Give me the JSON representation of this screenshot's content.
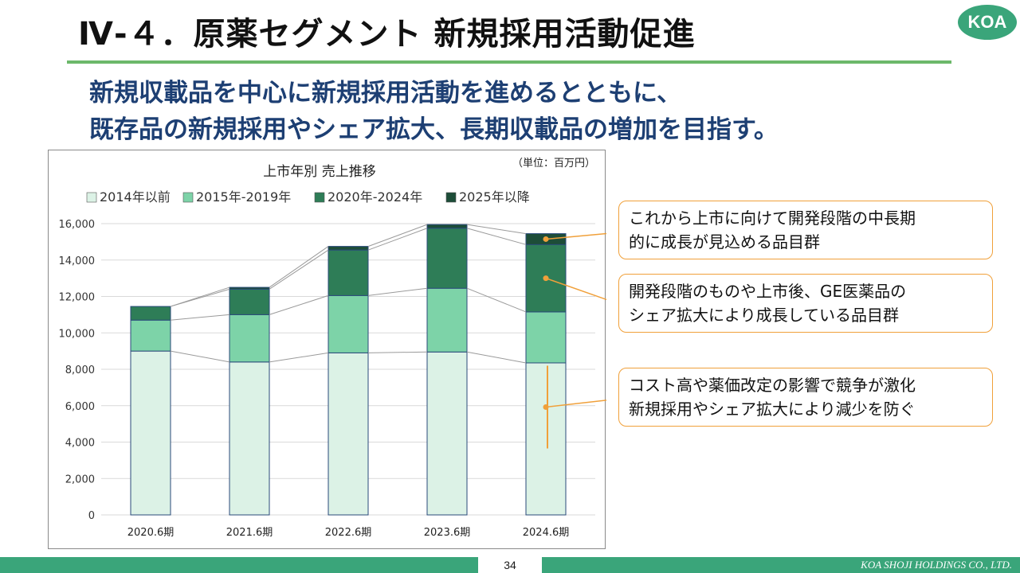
{
  "slide": {
    "title": "Ⅳ-４．原薬セグメント 新規採用活動促進",
    "logo": "KOA",
    "headline_line1": "新規収載品を中心に新規採用活動を進めるとともに、",
    "headline_line2": "既存品の新規採用やシェア拡大、長期収載品の増加を目指す。"
  },
  "callouts": {
    "c1_line1": "これから上市に向けて開発段階の中長期",
    "c1_line2": "的に成長が見込める品目群",
    "c2_line1": "開発段階のものや上市後、GE医薬品の",
    "c2_line2": "シェア拡大により成長している品目群",
    "c3_line1": "コスト高や薬価改定の影響で競争が激化",
    "c3_line2": "新規採用やシェア拡大により減少を防ぐ"
  },
  "footer": {
    "page": "34",
    "company": "KOA SHOJI HOLDINGS CO., LTD."
  },
  "chart_data": {
    "type": "bar",
    "stacked": true,
    "title": "上市年別 売上推移",
    "unit_note": "（単位：百万円）",
    "categories": [
      "2020.6期",
      "2021.6期",
      "2022.6期",
      "2023.6期",
      "2024.6期"
    ],
    "series": [
      {
        "name": "2014年以前",
        "color": "#dcf2e6",
        "values": [
          9000,
          8400,
          8900,
          8950,
          8350
        ]
      },
      {
        "name": "2015年-2019年",
        "color": "#7dd3a8",
        "values": [
          1700,
          2600,
          3150,
          3500,
          2800
        ]
      },
      {
        "name": "2020年-2024年",
        "color": "#2e7d57",
        "values": [
          750,
          1400,
          2500,
          3300,
          3700
        ]
      },
      {
        "name": "2025年以降",
        "color": "#1d4d38",
        "values": [
          0,
          100,
          200,
          200,
          600
        ]
      }
    ],
    "ylim": [
      0,
      16000
    ],
    "yticks": [
      "0",
      "2,000",
      "4,000",
      "6,000",
      "8,000",
      "10,000",
      "12,000",
      "14,000",
      "16,000"
    ],
    "grid": true,
    "legend": "top"
  }
}
